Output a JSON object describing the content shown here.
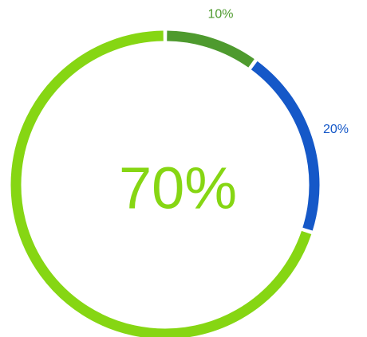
{
  "chart_data": {
    "type": "pie",
    "style": "donut",
    "center_label": "70%",
    "slices": [
      {
        "value": 10,
        "label": "10%",
        "color": "#4e9a2e"
      },
      {
        "value": 20,
        "label": "20%",
        "color": "#1558c8"
      },
      {
        "value": 70,
        "label": "",
        "color": "#86d613"
      }
    ],
    "center_label_color": "#86d613",
    "legend": "none"
  }
}
